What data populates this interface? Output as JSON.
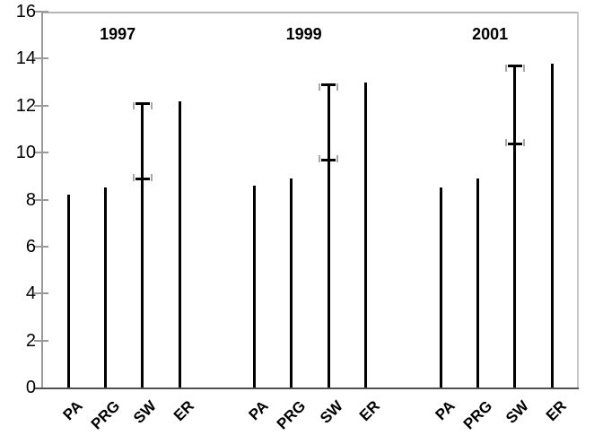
{
  "chart_data": {
    "type": "bar",
    "title": "",
    "xlabel": "",
    "ylabel": "",
    "ylim": [
      0,
      16
    ],
    "yticks": [
      0,
      2,
      4,
      6,
      8,
      10,
      12,
      14,
      16
    ],
    "grid": false,
    "legend": null,
    "categories": [
      "PA",
      "PRG",
      "SW",
      "ER"
    ],
    "groups": [
      {
        "label": "1997",
        "bars": [
          {
            "category": "PA",
            "value": 8.2,
            "bracket_low": null
          },
          {
            "category": "PRG",
            "value": 8.5,
            "bracket_low": null
          },
          {
            "category": "SW",
            "value": 12.1,
            "bracket_low": 8.9
          },
          {
            "category": "ER",
            "value": 12.2,
            "bracket_low": null
          }
        ]
      },
      {
        "label": "1999",
        "bars": [
          {
            "category": "PA",
            "value": 8.6,
            "bracket_low": null
          },
          {
            "category": "PRG",
            "value": 8.9,
            "bracket_low": null
          },
          {
            "category": "SW",
            "value": 12.9,
            "bracket_low": 9.7
          },
          {
            "category": "ER",
            "value": 13.0,
            "bracket_low": null
          }
        ]
      },
      {
        "label": "2001",
        "bars": [
          {
            "category": "PA",
            "value": 8.5,
            "bracket_low": null
          },
          {
            "category": "PRG",
            "value": 8.9,
            "bracket_low": null
          },
          {
            "category": "SW",
            "value": 13.7,
            "bracket_low": 10.4
          },
          {
            "category": "ER",
            "value": 13.8,
            "bracket_low": null
          }
        ]
      }
    ],
    "colors": {
      "bar": "#000000",
      "error_cap": "#000000",
      "error_hook": "#a8a8a8",
      "y_axis": "#9a9a9a",
      "tick": "#9a9a9a",
      "baseline": "#515151",
      "top_border": "#b4b4b4",
      "right_border": "#c8c8c8",
      "text": "#000000"
    },
    "notes": "SW bars carry a bracketed error range (black caps with light-gray hooks) from bracket_low up to the bar top."
  }
}
